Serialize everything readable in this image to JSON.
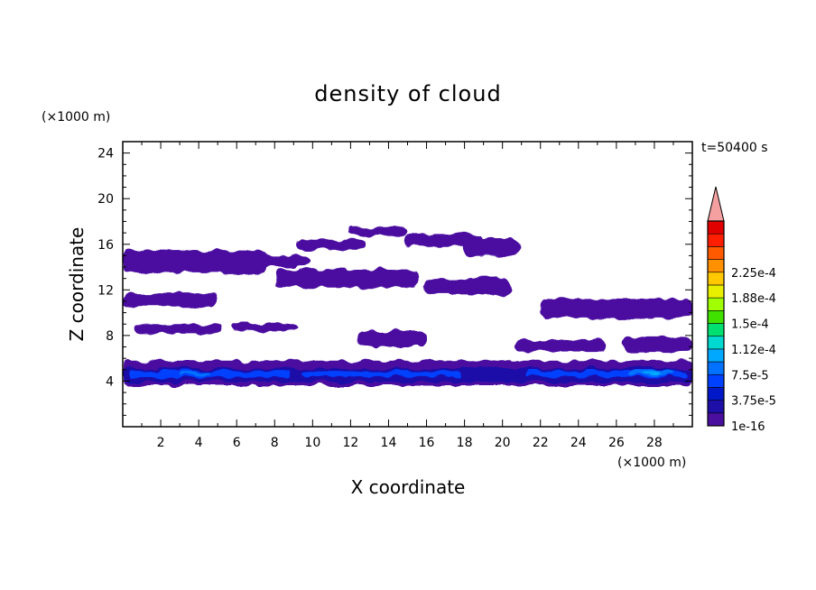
{
  "chart_data": {
    "type": "heatmap",
    "title": "density of cloud",
    "xlabel": "X coordinate",
    "ylabel": "Z coordinate",
    "x_unit": "(×1000 m)",
    "y_unit": "(×1000 m)",
    "time_label": "t=50400 s",
    "xlim": [
      0,
      30
    ],
    "ylim": [
      0,
      25
    ],
    "x_ticks": [
      2,
      4,
      6,
      8,
      10,
      12,
      14,
      16,
      18,
      20,
      22,
      24,
      26,
      28
    ],
    "y_ticks": [
      4,
      8,
      12,
      16,
      20,
      24
    ],
    "colorbar": {
      "labels": [
        "1e-16",
        "3.75e-5",
        "7.5e-5",
        "1.12e-4",
        "1.5e-4",
        "1.88e-4",
        "2.25e-4"
      ],
      "colors": [
        "#4b0fa0",
        "#1e0fa8",
        "#0018c8",
        "#0040ff",
        "#0072ff",
        "#00a8ff",
        "#00d8d0",
        "#00e070",
        "#40e000",
        "#a0ff00",
        "#e8f000",
        "#ffc800",
        "#ff9000",
        "#ff5a00",
        "#ff1e00",
        "#e00000"
      ],
      "overflow_color": "#f4a0a0"
    },
    "cloud_regions": [
      {
        "level": 0,
        "x": [
          0,
          30
        ],
        "z": [
          3.6,
          5.8
        ]
      },
      {
        "level": 0,
        "x": [
          0,
          7.6
        ],
        "z": [
          13.5,
          15.5
        ]
      },
      {
        "level": 0,
        "x": [
          0,
          9.8
        ],
        "z": [
          14,
          15
        ]
      },
      {
        "level": 0,
        "x": [
          0,
          5
        ],
        "z": [
          10.5,
          11.7
        ]
      },
      {
        "level": 0,
        "x": [
          8,
          15.6
        ],
        "z": [
          12.2,
          13.8
        ]
      },
      {
        "level": 0,
        "x": [
          9.2,
          12.8
        ],
        "z": [
          15.6,
          16.4
        ]
      },
      {
        "level": 0,
        "x": [
          14.8,
          19
        ],
        "z": [
          15.8,
          16.9
        ]
      },
      {
        "level": 0,
        "x": [
          17.8,
          21
        ],
        "z": [
          15,
          16.5
        ]
      },
      {
        "level": 0,
        "x": [
          11.8,
          15
        ],
        "z": [
          16.8,
          17.5
        ]
      },
      {
        "level": 0,
        "x": [
          22,
          30
        ],
        "z": [
          9.5,
          11.2
        ]
      },
      {
        "level": 0,
        "x": [
          0.6,
          5.2
        ],
        "z": [
          8.2,
          9
        ]
      },
      {
        "level": 0,
        "x": [
          5.8,
          9.2
        ],
        "z": [
          8.4,
          9
        ]
      },
      {
        "level": 0,
        "x": [
          12.4,
          16
        ],
        "z": [
          7,
          8.4
        ]
      },
      {
        "level": 0,
        "x": [
          20.6,
          25.4
        ],
        "z": [
          6.6,
          7.6
        ]
      },
      {
        "level": 0,
        "x": [
          15.8,
          20.4
        ],
        "z": [
          11.6,
          13
        ]
      },
      {
        "level": 0,
        "x": [
          26.4,
          30
        ],
        "z": [
          6.6,
          7.8
        ]
      },
      {
        "level": 1,
        "x": [
          0,
          30
        ],
        "z": [
          3.9,
          5.1
        ]
      },
      {
        "level": 3,
        "x": [
          0.4,
          8.8
        ],
        "z": [
          4.3,
          4.9
        ]
      },
      {
        "level": 3,
        "x": [
          9.4,
          17.8
        ],
        "z": [
          4.4,
          4.9
        ]
      },
      {
        "level": 3,
        "x": [
          21.2,
          29.8
        ],
        "z": [
          4.4,
          4.9
        ]
      },
      {
        "level": 4,
        "x": [
          3,
          4.6
        ],
        "z": [
          4.5,
          4.8
        ]
      },
      {
        "level": 4,
        "x": [
          26.6,
          29
        ],
        "z": [
          4.5,
          4.9
        ]
      },
      {
        "level": 5,
        "x": [
          27.4,
          28.4
        ],
        "z": [
          4.6,
          4.8
        ]
      }
    ]
  }
}
